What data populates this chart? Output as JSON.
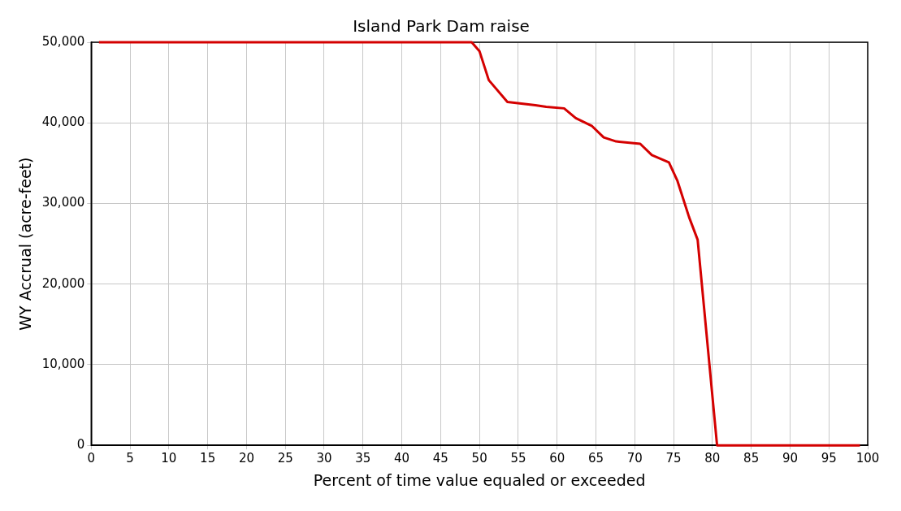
{
  "chart_data": {
    "type": "line",
    "title": "Island Park Dam raise",
    "xlabel": "Percent of time value equaled or exceeded",
    "ylabel": "WY Accrual (acre-feet)",
    "x": [
      1,
      49,
      50,
      51.2,
      53.6,
      57.2,
      58.6,
      60.9,
      62.4,
      64.5,
      66,
      67.6,
      70.7,
      72.2,
      74.4,
      75.5,
      77,
      78.1,
      80.6,
      99
    ],
    "series": [
      {
        "color": "#d40000",
        "values": [
          50000,
          50000,
          48900,
          45300,
          42600,
          42200,
          42000,
          41800,
          40600,
          39600,
          38200,
          37700,
          37400,
          36000,
          35100,
          32800,
          28300,
          25500,
          0,
          0
        ]
      }
    ],
    "xlim": [
      0,
      100
    ],
    "xticks": [
      0,
      5,
      10,
      15,
      20,
      25,
      30,
      35,
      40,
      45,
      50,
      55,
      60,
      65,
      70,
      75,
      80,
      85,
      90,
      95,
      100
    ],
    "ylim": [
      0,
      50000
    ],
    "yticks": [
      {
        "value": 0,
        "label": "0"
      },
      {
        "value": 10000,
        "label": "10,000"
      },
      {
        "value": 20000,
        "label": "20,000"
      },
      {
        "value": 30000,
        "label": "30,000"
      },
      {
        "value": 40000,
        "label": "40,000"
      },
      {
        "value": 50000,
        "label": "50,000"
      }
    ],
    "grid": true,
    "legend": false,
    "marker": "none",
    "line_style": "solid"
  }
}
